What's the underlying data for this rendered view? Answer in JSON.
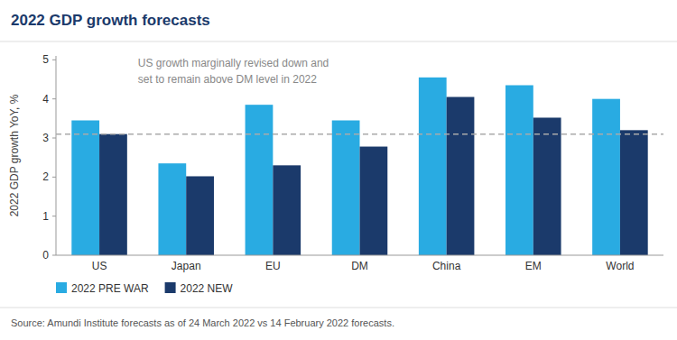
{
  "chart_data": {
    "type": "bar",
    "title": "2022 GDP growth forecasts",
    "categories": [
      "US",
      "Japan",
      "EU",
      "DM",
      "China",
      "EM",
      "World"
    ],
    "series": [
      {
        "name": "2022 PRE WAR",
        "color": "#29ABE2",
        "values": [
          3.45,
          2.35,
          3.85,
          3.45,
          4.55,
          4.35,
          4.0
        ]
      },
      {
        "name": "2022 NEW",
        "color": "#1B3A6B",
        "values": [
          3.1,
          2.02,
          2.3,
          2.78,
          4.05,
          3.52,
          3.2
        ]
      }
    ],
    "y_label": "2022 GDP growth YoY, %",
    "ylim": [
      0,
      5.1
    ],
    "yticks": [
      0,
      1,
      2,
      3,
      4,
      5
    ],
    "reference_lines": [
      {
        "y": 3.1,
        "color": "#AAAAAA",
        "line_style": "dashed"
      }
    ],
    "annotation": "US growth marginally revised down and\nset to remain above DM level in 2022",
    "source": "Source: Amundi Institute forecasts as of 24 March 2022 vs 14 February 2022 forecasts.",
    "grid": false,
    "legend": "bottom"
  }
}
